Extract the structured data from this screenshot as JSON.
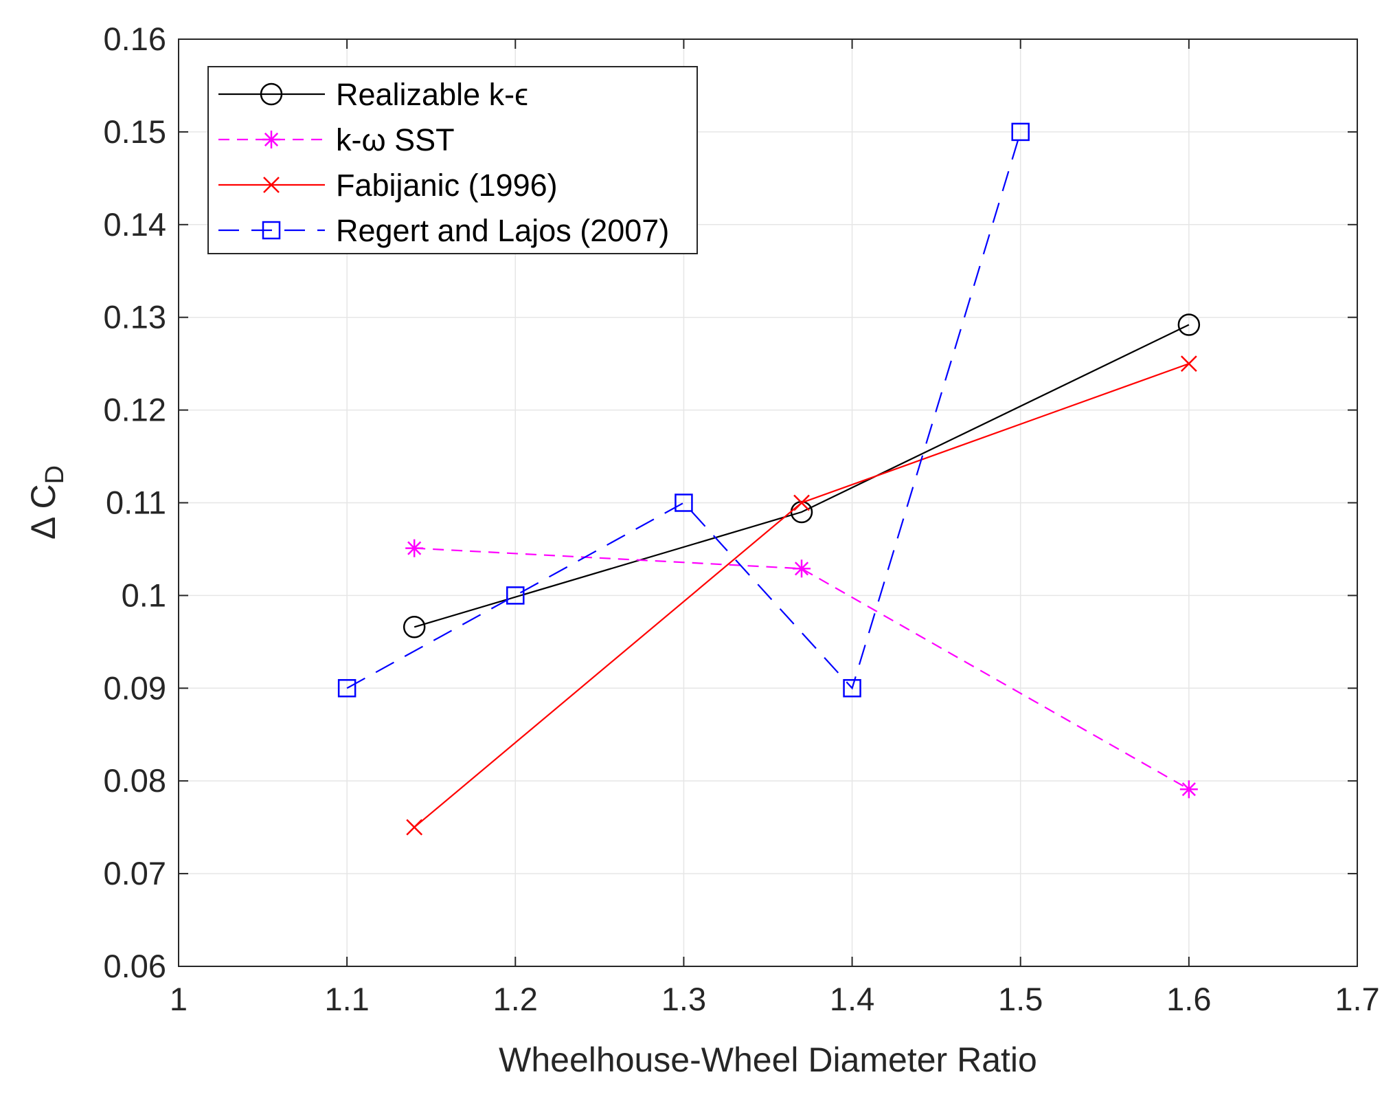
{
  "chart_data": {
    "type": "line",
    "title": "",
    "xlabel": "Wheelhouse-Wheel Diameter Ratio",
    "ylabel": "Δ C",
    "ylabel_subscript": "D",
    "xlim": [
      1.0,
      1.7
    ],
    "ylim": [
      0.06,
      0.16
    ],
    "grid": true,
    "legend_position": "top-left",
    "x_ticks": [
      1.0,
      1.1,
      1.2,
      1.3,
      1.4,
      1.5,
      1.6,
      1.7
    ],
    "x_tick_labels": [
      "1",
      "1.1",
      "1.2",
      "1.3",
      "1.4",
      "1.5",
      "1.6",
      "1.7"
    ],
    "y_ticks": [
      0.06,
      0.07,
      0.08,
      0.09,
      0.1,
      0.11,
      0.12,
      0.13,
      0.14,
      0.15,
      0.16
    ],
    "y_tick_labels": [
      "0.06",
      "0.07",
      "0.08",
      "0.09",
      "0.1",
      "0.11",
      "0.12",
      "0.13",
      "0.14",
      "0.15",
      "0.16"
    ],
    "series": [
      {
        "name": "Realizable k-ϵ",
        "color": "#000000",
        "dash": "solid",
        "marker": "circle",
        "x": [
          1.14,
          1.37,
          1.6
        ],
        "y": [
          0.0966,
          0.109,
          0.1292
        ]
      },
      {
        "name": "k-ω SST",
        "color": "#ff00ff",
        "dash": "dashed",
        "marker": "asterisk",
        "x": [
          1.14,
          1.37,
          1.6
        ],
        "y": [
          0.1051,
          0.1029,
          0.0791
        ]
      },
      {
        "name": "Fabijanic (1996)",
        "color": "#ff0000",
        "dash": "solid",
        "marker": "x",
        "x": [
          1.14,
          1.37,
          1.6
        ],
        "y": [
          0.075,
          0.11,
          0.125
        ]
      },
      {
        "name": "Regert and Lajos (2007)",
        "color": "#0000ff",
        "dash": "longdash",
        "marker": "square",
        "x": [
          1.1,
          1.2,
          1.3,
          1.4,
          1.5
        ],
        "y": [
          0.09,
          0.1,
          0.11,
          0.09,
          0.15
        ]
      }
    ]
  }
}
